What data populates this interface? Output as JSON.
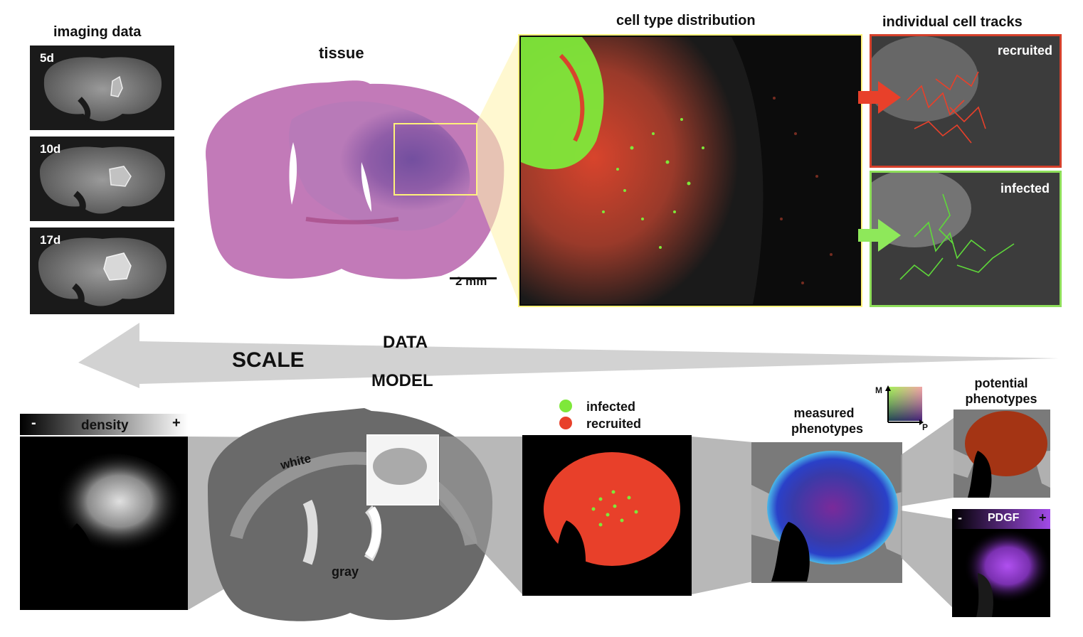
{
  "headings": {
    "imaging_data": "imaging data",
    "tissue": "tissue",
    "cell_type_distribution": "cell type distribution",
    "individual_cell_tracks": "individual cell tracks"
  },
  "mri_panels": [
    {
      "day": "5d"
    },
    {
      "day": "10d"
    },
    {
      "day": "17d"
    }
  ],
  "tissue_scale_bar": "2 mm",
  "tracks": {
    "recruited": "recruited",
    "infected": "infected"
  },
  "arrow": {
    "scale": "SCALE",
    "data": "DATA",
    "model": "MODEL"
  },
  "density_bar": {
    "minus": "-",
    "label": "density",
    "plus": "+"
  },
  "brain_model": {
    "white": "white",
    "gray": "gray"
  },
  "legend": {
    "infected": "infected",
    "recruited": "recruited"
  },
  "measured_phenotypes": "measured phenotypes",
  "potential_phenotypes": "potential phenotypes",
  "axis_key": {
    "m": "M",
    "p": "P"
  },
  "pdgf_bar": {
    "minus": "-",
    "label": "PDGF",
    "plus": "+"
  },
  "colors": {
    "infected_green": "#7ee83a",
    "recruited_red": "#e8402a",
    "highlight_yellow": "#fff27a",
    "track_frame_red": "#d5402b",
    "track_frame_green": "#8ede5a",
    "pdgf_purple": "#a24be8"
  }
}
